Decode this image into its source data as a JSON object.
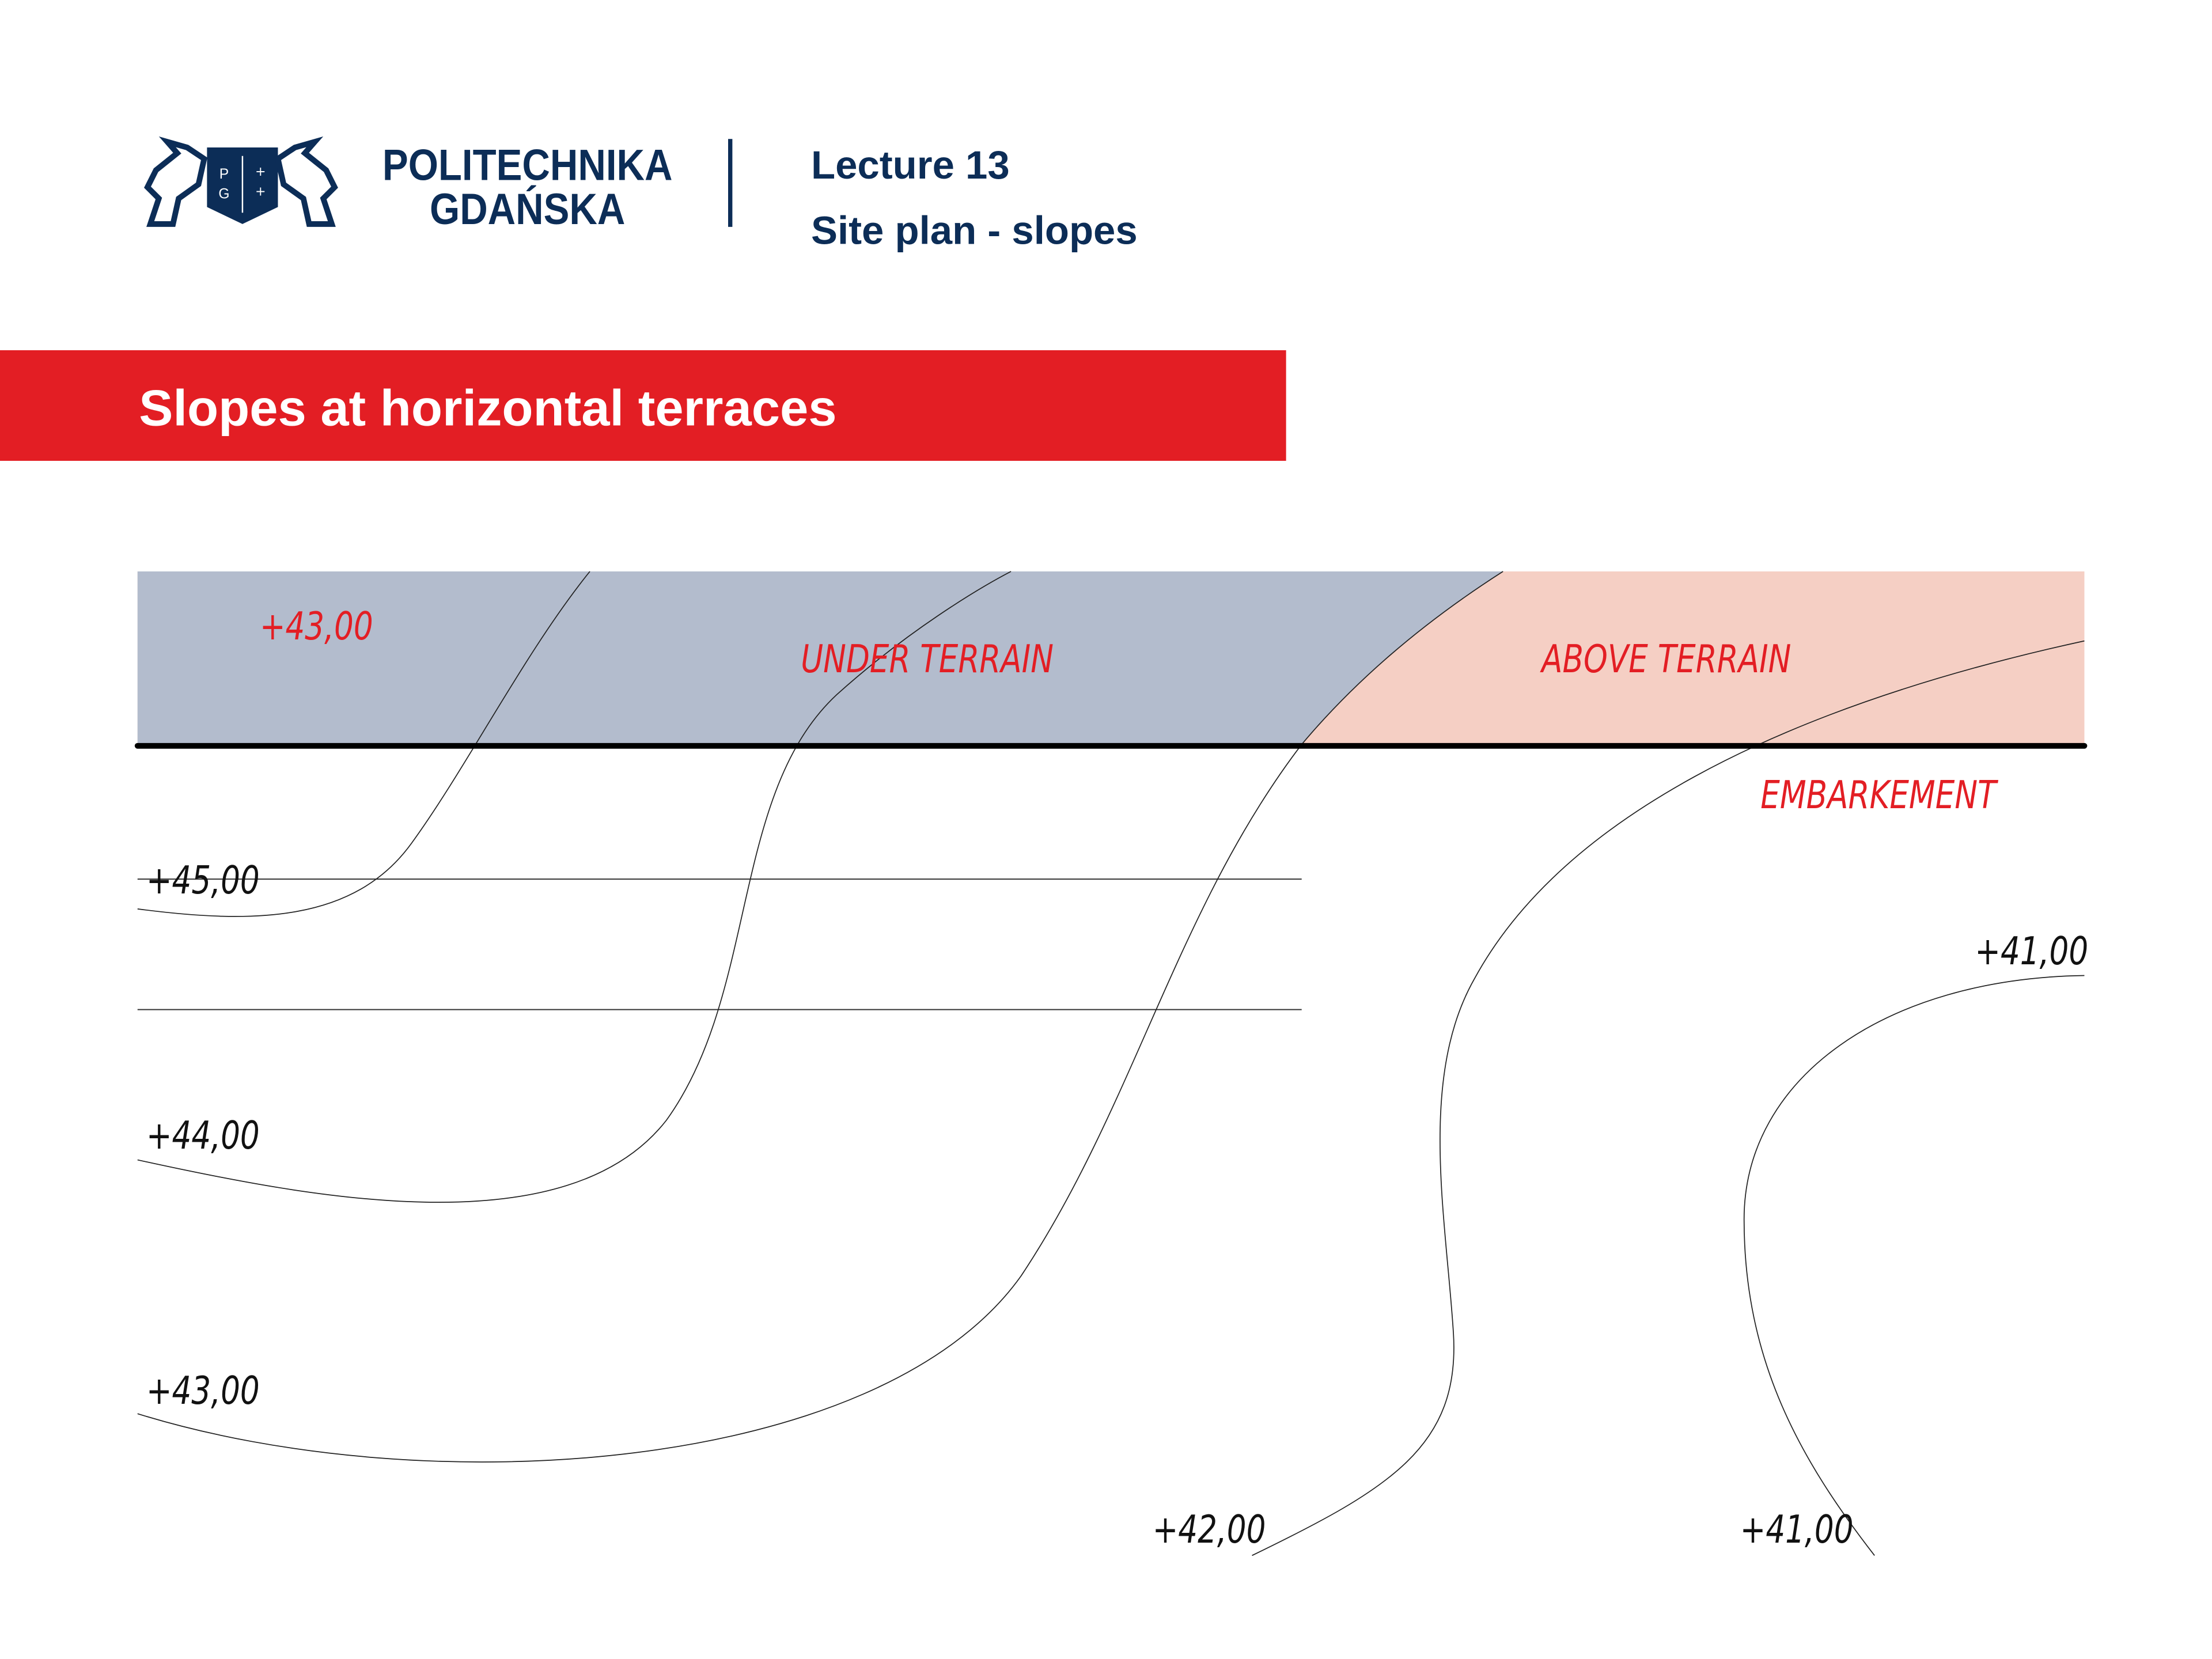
{
  "header": {
    "logo_line1": "POLITECHNIKA",
    "logo_line2": "GDAŃSKA",
    "shield_letters": [
      "P",
      "G"
    ],
    "lecture": "Lecture 13",
    "subtitle": "Site plan - slopes"
  },
  "banner": {
    "title": "Slopes at horizontal terraces",
    "color": "#e31e24"
  },
  "diagram": {
    "zones": {
      "under_label": "UNDER  TERRAIN",
      "above_label": "ABOVE  TERRAIN",
      "terrace_level": "+43,00",
      "under_color": "#b3bccd",
      "above_color": "#f5cfc4"
    },
    "embankment_label": "EMBARKEMENT",
    "contour_labels": [
      "+45,00",
      "+44,00",
      "+43,00",
      "+42,00",
      "+41,00",
      "+41,00"
    ]
  }
}
